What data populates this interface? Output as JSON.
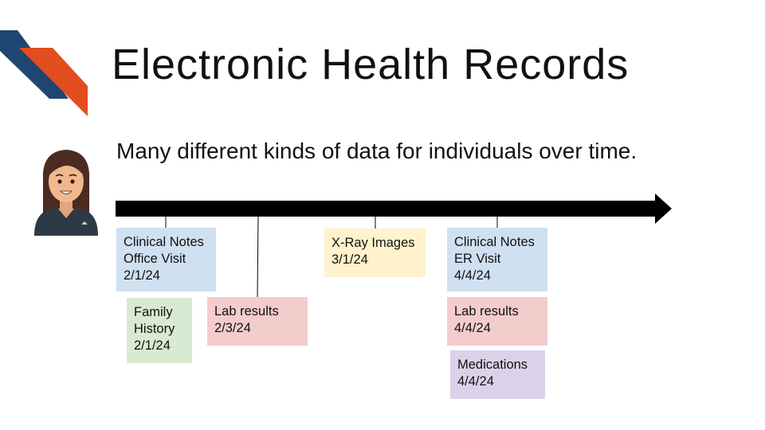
{
  "slide": {
    "title": "Electronic Health Records",
    "subtitle": "Many different kinds of data for individuals over time.",
    "logo_icon": "chevron-stripes-logo",
    "avatar_icon": "woman-avatar-icon"
  },
  "colors": {
    "logo_navy": "#1f4670",
    "logo_orange": "#e24e1f",
    "arrow": "#000000",
    "blue": "#cfe0f1",
    "green": "#d9ead3",
    "red": "#f3cccc",
    "yellow": "#fff2cc",
    "purple": "#d9d2e9"
  },
  "records": [
    {
      "id": "clinical-notes-office",
      "lines": [
        "Clinical Notes",
        "Office Visit",
        "2/1/24"
      ],
      "color": "blue"
    },
    {
      "id": "family-history",
      "lines": [
        "Family",
        "History",
        "2/1/24"
      ],
      "color": "green"
    },
    {
      "id": "lab-results-feb",
      "lines": [
        "Lab results",
        "2/3/24"
      ],
      "color": "red"
    },
    {
      "id": "xray-images",
      "lines": [
        "X-Ray Images",
        "3/1/24"
      ],
      "color": "yellow"
    },
    {
      "id": "clinical-notes-er",
      "lines": [
        "Clinical Notes",
        "ER Visit",
        "4/4/24"
      ],
      "color": "blue"
    },
    {
      "id": "lab-results-apr",
      "lines": [
        "Lab results",
        "4/4/24"
      ],
      "color": "red"
    },
    {
      "id": "medications",
      "lines": [
        "Medications",
        "4/4/24"
      ],
      "color": "purple"
    }
  ]
}
